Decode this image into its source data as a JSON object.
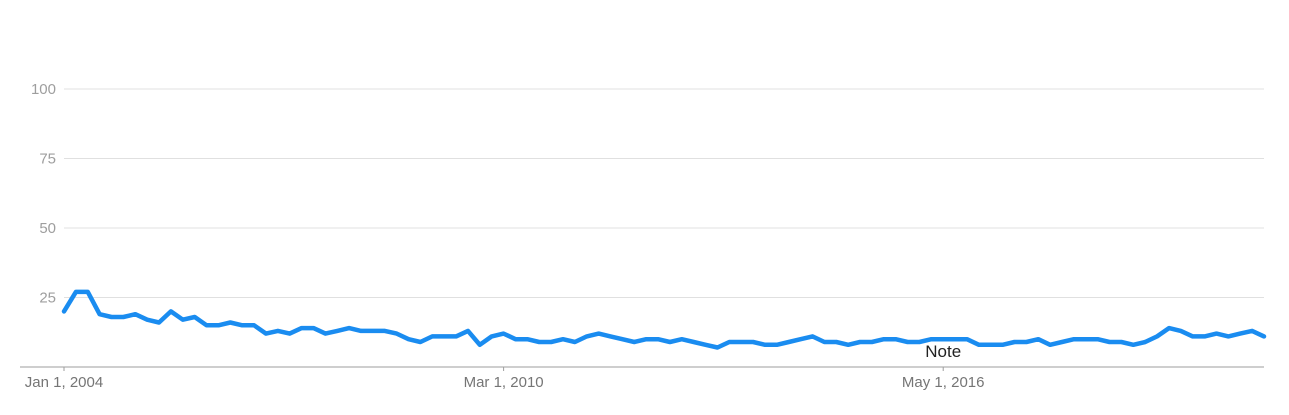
{
  "colors": {
    "series": "#1a8cf0",
    "grid": "#e0e0e0",
    "axis": "#9e9e9e",
    "tick_text": "#9e9e9e",
    "x_tick_text": "#757575",
    "note_text": "#212121"
  },
  "chart_data": {
    "type": "line",
    "title": "",
    "xlabel": "",
    "ylabel": "",
    "ylim": [
      0,
      100
    ],
    "xlim": [
      "2004-01",
      "2020-11"
    ],
    "y_ticks": [
      25,
      50,
      75,
      100
    ],
    "x_ticks": [
      {
        "date": "2004-01",
        "label": "Jan 1, 2004"
      },
      {
        "date": "2010-03",
        "label": "Mar 1, 2010"
      },
      {
        "date": "2016-05",
        "label": "May 1, 2016"
      }
    ],
    "grid": true,
    "legend": "none",
    "annotations": [
      {
        "date": "2016-05",
        "label": "Note"
      }
    ],
    "series": [
      {
        "values": [
          {
            "x": "2004-01",
            "y": 20
          },
          {
            "x": "2004-03",
            "y": 27
          },
          {
            "x": "2004-05",
            "y": 27
          },
          {
            "x": "2004-07",
            "y": 19
          },
          {
            "x": "2004-09",
            "y": 18
          },
          {
            "x": "2004-11",
            "y": 18
          },
          {
            "x": "2005-01",
            "y": 19
          },
          {
            "x": "2005-03",
            "y": 17
          },
          {
            "x": "2005-05",
            "y": 16
          },
          {
            "x": "2005-07",
            "y": 20
          },
          {
            "x": "2005-09",
            "y": 17
          },
          {
            "x": "2005-11",
            "y": 18
          },
          {
            "x": "2006-01",
            "y": 15
          },
          {
            "x": "2006-03",
            "y": 15
          },
          {
            "x": "2006-05",
            "y": 16
          },
          {
            "x": "2006-07",
            "y": 15
          },
          {
            "x": "2006-09",
            "y": 15
          },
          {
            "x": "2006-11",
            "y": 12
          },
          {
            "x": "2007-01",
            "y": 13
          },
          {
            "x": "2007-03",
            "y": 12
          },
          {
            "x": "2007-05",
            "y": 14
          },
          {
            "x": "2007-07",
            "y": 14
          },
          {
            "x": "2007-09",
            "y": 12
          },
          {
            "x": "2007-11",
            "y": 13
          },
          {
            "x": "2008-01",
            "y": 14
          },
          {
            "x": "2008-03",
            "y": 13
          },
          {
            "x": "2008-05",
            "y": 13
          },
          {
            "x": "2008-07",
            "y": 13
          },
          {
            "x": "2008-09",
            "y": 12
          },
          {
            "x": "2008-11",
            "y": 10
          },
          {
            "x": "2009-01",
            "y": 9
          },
          {
            "x": "2009-03",
            "y": 11
          },
          {
            "x": "2009-05",
            "y": 11
          },
          {
            "x": "2009-07",
            "y": 11
          },
          {
            "x": "2009-09",
            "y": 13
          },
          {
            "x": "2009-11",
            "y": 8
          },
          {
            "x": "2010-01",
            "y": 11
          },
          {
            "x": "2010-03",
            "y": 12
          },
          {
            "x": "2010-05",
            "y": 10
          },
          {
            "x": "2010-07",
            "y": 10
          },
          {
            "x": "2010-09",
            "y": 9
          },
          {
            "x": "2010-11",
            "y": 9
          },
          {
            "x": "2011-01",
            "y": 10
          },
          {
            "x": "2011-03",
            "y": 9
          },
          {
            "x": "2011-05",
            "y": 11
          },
          {
            "x": "2011-07",
            "y": 12
          },
          {
            "x": "2011-09",
            "y": 11
          },
          {
            "x": "2011-11",
            "y": 10
          },
          {
            "x": "2012-01",
            "y": 9
          },
          {
            "x": "2012-03",
            "y": 10
          },
          {
            "x": "2012-05",
            "y": 10
          },
          {
            "x": "2012-07",
            "y": 9
          },
          {
            "x": "2012-09",
            "y": 10
          },
          {
            "x": "2012-11",
            "y": 9
          },
          {
            "x": "2013-01",
            "y": 8
          },
          {
            "x": "2013-03",
            "y": 7
          },
          {
            "x": "2013-05",
            "y": 9
          },
          {
            "x": "2013-07",
            "y": 9
          },
          {
            "x": "2013-09",
            "y": 9
          },
          {
            "x": "2013-11",
            "y": 8
          },
          {
            "x": "2014-01",
            "y": 8
          },
          {
            "x": "2014-03",
            "y": 9
          },
          {
            "x": "2014-05",
            "y": 10
          },
          {
            "x": "2014-07",
            "y": 11
          },
          {
            "x": "2014-09",
            "y": 9
          },
          {
            "x": "2014-11",
            "y": 9
          },
          {
            "x": "2015-01",
            "y": 8
          },
          {
            "x": "2015-03",
            "y": 9
          },
          {
            "x": "2015-05",
            "y": 9
          },
          {
            "x": "2015-07",
            "y": 10
          },
          {
            "x": "2015-09",
            "y": 10
          },
          {
            "x": "2015-11",
            "y": 9
          },
          {
            "x": "2016-01",
            "y": 9
          },
          {
            "x": "2016-03",
            "y": 10
          },
          {
            "x": "2016-05",
            "y": 10
          },
          {
            "x": "2016-07",
            "y": 10
          },
          {
            "x": "2016-09",
            "y": 10
          },
          {
            "x": "2016-11",
            "y": 8
          },
          {
            "x": "2017-01",
            "y": 8
          },
          {
            "x": "2017-03",
            "y": 8
          },
          {
            "x": "2017-05",
            "y": 9
          },
          {
            "x": "2017-07",
            "y": 9
          },
          {
            "x": "2017-09",
            "y": 10
          },
          {
            "x": "2017-11",
            "y": 8
          },
          {
            "x": "2018-01",
            "y": 9
          },
          {
            "x": "2018-03",
            "y": 10
          },
          {
            "x": "2018-05",
            "y": 10
          },
          {
            "x": "2018-07",
            "y": 10
          },
          {
            "x": "2018-09",
            "y": 9
          },
          {
            "x": "2018-11",
            "y": 9
          },
          {
            "x": "2019-01",
            "y": 8
          },
          {
            "x": "2019-03",
            "y": 9
          },
          {
            "x": "2019-05",
            "y": 11
          },
          {
            "x": "2019-07",
            "y": 14
          },
          {
            "x": "2019-09",
            "y": 13
          },
          {
            "x": "2019-11",
            "y": 11
          },
          {
            "x": "2020-01",
            "y": 11
          },
          {
            "x": "2020-03",
            "y": 12
          },
          {
            "x": "2020-05",
            "y": 11
          },
          {
            "x": "2020-07",
            "y": 12
          },
          {
            "x": "2020-09",
            "y": 13
          },
          {
            "x": "2020-11",
            "y": 11
          }
        ]
      }
    ]
  }
}
